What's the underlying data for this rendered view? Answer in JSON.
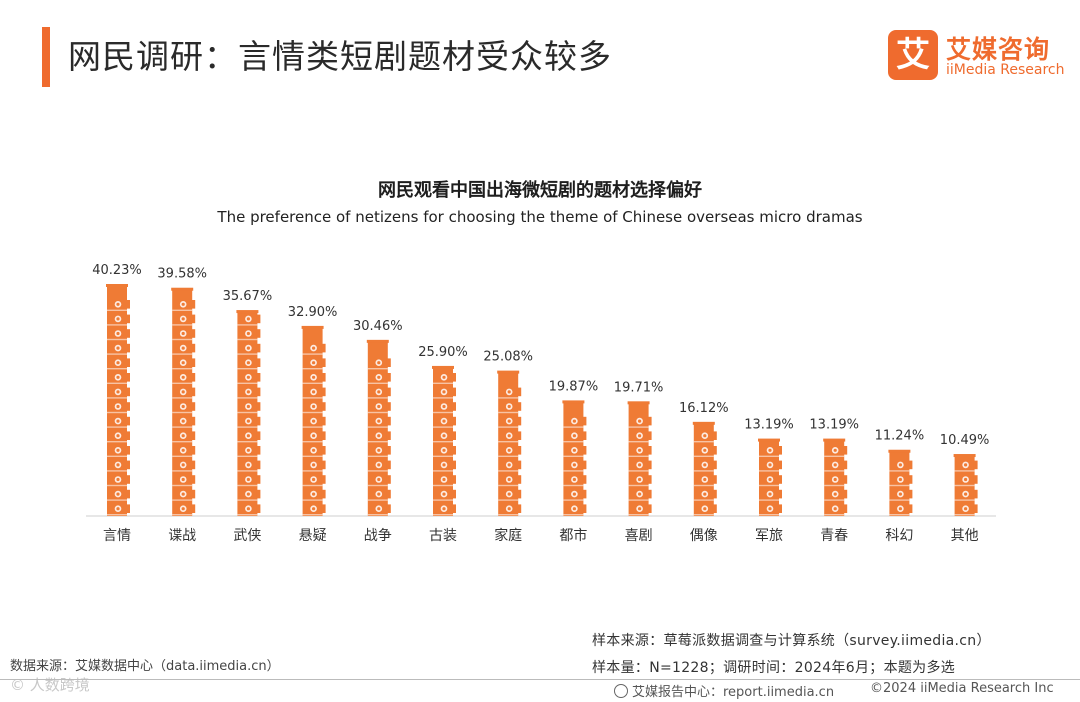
{
  "header": {
    "title": "网民调研：言情类短剧题材受众较多",
    "logo_mark": "艾",
    "logo_cn": "艾媒咨询",
    "logo_en": "iiMedia Research"
  },
  "colors": {
    "accent": "#ef6b2e",
    "bar": "#ef7b35"
  },
  "chart_data": {
    "type": "bar",
    "title": "网民观看中国出海微短剧的题材选择偏好",
    "subtitle": "The preference of netizens for choosing the theme of Chinese overseas micro dramas",
    "categories": [
      "言情",
      "谍战",
      "武侠",
      "悬疑",
      "战争",
      "古装",
      "家庭",
      "都市",
      "喜剧",
      "偶像",
      "军旅",
      "青春",
      "科幻",
      "其他"
    ],
    "values": [
      40.23,
      39.58,
      35.67,
      32.9,
      30.46,
      25.9,
      25.08,
      19.87,
      19.71,
      16.12,
      13.19,
      13.19,
      11.24,
      10.49
    ],
    "labels": [
      "40.23%",
      "39.58%",
      "35.67%",
      "32.90%",
      "30.46%",
      "25.90%",
      "25.08%",
      "19.87%",
      "19.71%",
      "16.12%",
      "13.19%",
      "13.19%",
      "11.24%",
      "10.49%"
    ],
    "xlabel": "",
    "ylabel": "",
    "ylim": [
      0,
      40.23
    ],
    "grid": false,
    "mark": "film-camera-icon"
  },
  "footer": {
    "source_right": "样本来源：草莓派数据调查与计算系统（survey.iimedia.cn）",
    "sample": "样本量：N=1228；调研时间：2024年6月；本题为多选",
    "source_left": "数据来源：艾媒数据中心（data.iimedia.cn）",
    "report": "艾媒报告中心：report.iimedia.cn",
    "copyright": "©2024  iiMedia Research  Inc",
    "watermark": "© 人数跨境"
  }
}
